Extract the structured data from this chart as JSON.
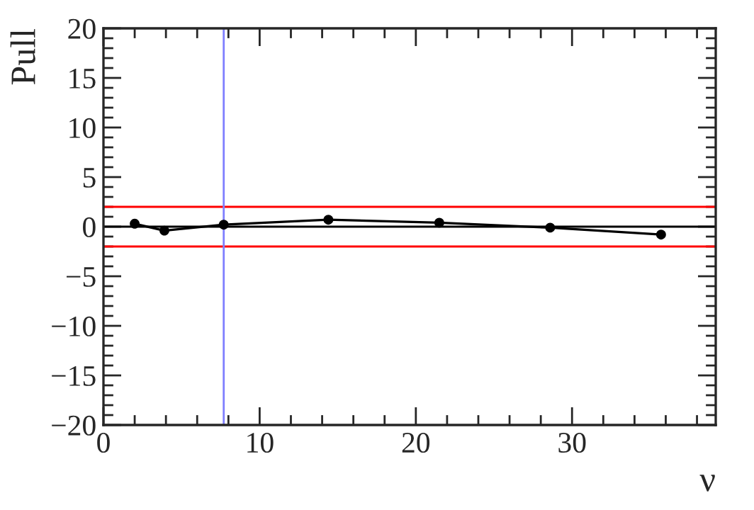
{
  "chart_data": {
    "type": "line",
    "xlabel": "ν",
    "ylabel": "Pull",
    "x": [
      2.0,
      3.9,
      7.7,
      14.4,
      21.5,
      28.6,
      35.7
    ],
    "series": [
      {
        "color": "#000000",
        "values": [
          0.3,
          -0.4,
          0.2,
          0.7,
          0.4,
          -0.1,
          -0.8
        ]
      }
    ],
    "marker": "circle",
    "line_style": "solid",
    "xlim": [
      0,
      39.2
    ],
    "xticks": [
      0,
      10,
      20,
      30
    ],
    "ylim": [
      -20,
      20
    ],
    "yticks": [
      {
        "value": -20,
        "label": "−20"
      },
      {
        "value": -15,
        "label": "−15"
      },
      {
        "value": -10,
        "label": "−10"
      },
      {
        "value": -5,
        "label": "−5"
      },
      0,
      5,
      10,
      15,
      20
    ],
    "ref_lines": [
      {
        "axis": "y",
        "value": 0,
        "color": "#000000"
      },
      {
        "axis": "y",
        "value": 2,
        "color": "#ff0000"
      },
      {
        "axis": "y",
        "value": -2,
        "color": "#ff0000"
      },
      {
        "axis": "x",
        "value": 7.7,
        "color": "#7f7fff"
      }
    ],
    "grid": false,
    "legend": false
  }
}
